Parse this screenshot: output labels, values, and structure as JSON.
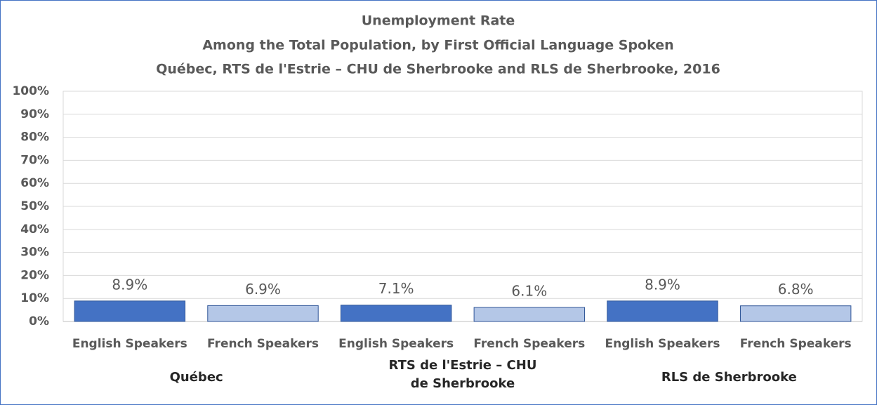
{
  "chart_data": {
    "type": "bar",
    "title": "Unemployment Rate",
    "subtitle": [
      "Among the Total Population, by First Official Language Spoken",
      "Québec, RTS de l'Estrie – CHU de Sherbrooke and RLS de Sherbrooke, 2016"
    ],
    "colors": [
      "#4472c4",
      "#b4c7e7"
    ],
    "groups": [
      {
        "name": "Québec",
        "categories": [
          "English Speakers",
          "French Speakers"
        ],
        "values": [
          8.9,
          6.9
        ],
        "value_labels": [
          "8.9%",
          "6.9%"
        ]
      },
      {
        "name": "RTS de l'Estrie – CHU de Sherbrooke",
        "categories": [
          "English Speakers",
          "French Speakers"
        ],
        "values": [
          7.1,
          6.1
        ],
        "value_labels": [
          "7.1%",
          "6.1%"
        ]
      },
      {
        "name": "RLS de Sherbrooke",
        "categories": [
          "English Speakers",
          "French Speakers"
        ],
        "values": [
          8.9,
          6.8
        ],
        "value_labels": [
          "8.9%",
          "6.8%"
        ]
      }
    ],
    "ylim": [
      0,
      100
    ],
    "yticks": [
      {
        "value": 0,
        "label": "0%"
      },
      {
        "value": 10,
        "label": "10%"
      },
      {
        "value": 20,
        "label": "20%"
      },
      {
        "value": 30,
        "label": "30%"
      },
      {
        "value": 40,
        "label": "40%"
      },
      {
        "value": 50,
        "label": "50%"
      },
      {
        "value": 60,
        "label": "60%"
      },
      {
        "value": 70,
        "label": "70%"
      },
      {
        "value": 80,
        "label": "80%"
      },
      {
        "value": 90,
        "label": "90%"
      },
      {
        "value": 100,
        "label": "100%"
      }
    ],
    "grid": true
  }
}
